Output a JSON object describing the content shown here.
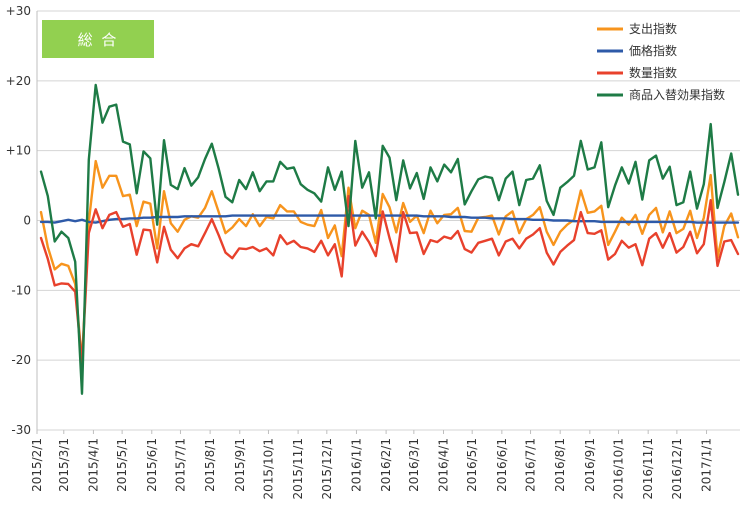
{
  "chart_data": {
    "type": "line",
    "title": "総 合",
    "xlabel": "",
    "ylabel": "",
    "ylim": [
      -30,
      30
    ],
    "y_ticks": [
      30,
      20,
      10,
      0,
      -10,
      -20,
      -30
    ],
    "y_tick_labels": [
      "+30",
      "+20",
      "+10",
      "0",
      "-10",
      "-20",
      "-30"
    ],
    "x_tick_labels": [
      "2015/2/1",
      "2015/3/1",
      "2015/4/1",
      "2015/5/1",
      "2015/6/1",
      "2015/7/1",
      "2015/8/1",
      "2015/9/1",
      "2015/10/1",
      "2015/11/1",
      "2015/12/1",
      "2016/1/1",
      "2016/2/1",
      "2016/3/1",
      "2016/4/1",
      "2016/5/1",
      "2016/6/1",
      "2016/7/1",
      "2016/8/1",
      "2016/9/1",
      "2016/10/1",
      "2016/11/1",
      "2016/12/1",
      "2017/1/1"
    ],
    "x_start": "2015/2/1",
    "x_end": "2017/2/5",
    "frequency": "weekly",
    "grid": "horizontal",
    "legend_position": "top-right",
    "badge_color": "#92d050",
    "series": [
      {
        "name": "支出指数",
        "color": "#f7941d",
        "values": [
          1.2,
          -3.8,
          -7.0,
          -6.2,
          -6.5,
          -9.1,
          -20.3,
          -0.2,
          8.5,
          4.7,
          6.4,
          6.4,
          3.5,
          3.7,
          -0.8,
          2.7,
          2.4,
          -4.0,
          4.2,
          -0.4,
          -1.6,
          0.1,
          0.6,
          0.4,
          1.8,
          4.2,
          1.2,
          -1.8,
          -1.0,
          0.2,
          -0.8,
          0.9,
          -0.8,
          0.5,
          0.3,
          2.2,
          1.3,
          1.3,
          -0.2,
          -0.6,
          -0.8,
          1.5,
          -2.5,
          -0.7,
          -5.1,
          4.7,
          -1.1,
          1.4,
          0.8,
          -3.2,
          3.8,
          1.9,
          -1.7,
          2.5,
          -0.2,
          0.7,
          -1.8,
          1.4,
          -0.4,
          0.8,
          0.9,
          1.8,
          -1.5,
          -1.6,
          0.4,
          0.5,
          0.7,
          -2.0,
          0.6,
          1.3,
          -1.8,
          0.2,
          0.8,
          1.9,
          -1.6,
          -3.5,
          -1.6,
          -0.6,
          0.1,
          4.3,
          1.1,
          1.3,
          2.1,
          -3.5,
          -1.6,
          0.4,
          -0.6,
          0.8,
          -1.9,
          0.8,
          1.8,
          -1.7,
          1.3,
          -1.8,
          -1.2,
          1.4,
          -2.5,
          0.4,
          6.5,
          -5.3,
          -0.8,
          1.0,
          -2.4
        ]
      },
      {
        "name": "価格指数",
        "color": "#2e5aa8",
        "values": [
          -0.2,
          -0.2,
          -0.3,
          -0.1,
          0.1,
          -0.1,
          0.1,
          -0.2,
          -0.3,
          -0.1,
          0.1,
          0.2,
          0.2,
          0.3,
          0.3,
          0.4,
          0.4,
          0.5,
          0.5,
          0.5,
          0.5,
          0.6,
          0.6,
          0.6,
          0.6,
          0.6,
          0.6,
          0.6,
          0.7,
          0.7,
          0.7,
          0.7,
          0.7,
          0.7,
          0.7,
          0.7,
          0.7,
          0.7,
          0.7,
          0.7,
          0.7,
          0.7,
          0.7,
          0.7,
          0.7,
          0.7,
          0.7,
          0.7,
          0.7,
          0.7,
          0.7,
          0.7,
          0.7,
          0.7,
          0.7,
          0.7,
          0.6,
          0.6,
          0.6,
          0.6,
          0.5,
          0.5,
          0.5,
          0.4,
          0.4,
          0.4,
          0.3,
          0.3,
          0.3,
          0.2,
          0.2,
          0.2,
          0.1,
          0.1,
          0.1,
          0.0,
          0.0,
          0.0,
          -0.1,
          -0.1,
          -0.1,
          -0.1,
          -0.2,
          -0.2,
          -0.2,
          -0.2,
          -0.2,
          -0.2,
          -0.2,
          -0.2,
          -0.2,
          -0.2,
          -0.2,
          -0.2,
          -0.2,
          -0.2,
          -0.3,
          -0.3,
          -0.3,
          -0.3,
          -0.3,
          -0.3,
          -0.3
        ]
      },
      {
        "name": "数量指数",
        "color": "#e8412c",
        "values": [
          -2.5,
          -5.5,
          -9.3,
          -9.0,
          -9.1,
          -10.2,
          -20.4,
          -1.8,
          1.6,
          -1.1,
          0.8,
          1.2,
          -0.9,
          -0.5,
          -4.9,
          -1.3,
          -1.4,
          -6.0,
          -0.9,
          -4.2,
          -5.4,
          -4.0,
          -3.4,
          -3.7,
          -1.8,
          0.2,
          -2.1,
          -4.6,
          -5.4,
          -4.0,
          -4.1,
          -3.8,
          -4.4,
          -4.0,
          -5.0,
          -2.1,
          -3.4,
          -2.9,
          -3.8,
          -4.0,
          -4.5,
          -2.9,
          -5.0,
          -3.4,
          -8.0,
          3.5,
          -3.6,
          -1.6,
          -3.1,
          -5.1,
          1.3,
          -2.5,
          -5.9,
          1.2,
          -1.8,
          -1.7,
          -4.8,
          -2.8,
          -3.1,
          -2.3,
          -2.6,
          -1.5,
          -4.1,
          -4.6,
          -3.2,
          -2.9,
          -2.6,
          -5.0,
          -3.0,
          -2.6,
          -4.0,
          -2.6,
          -2.0,
          -1.1,
          -4.6,
          -6.3,
          -4.5,
          -3.6,
          -2.8,
          1.2,
          -1.8,
          -1.9,
          -1.4,
          -5.6,
          -4.8,
          -2.9,
          -3.9,
          -3.4,
          -6.4,
          -2.6,
          -1.8,
          -3.9,
          -1.8,
          -4.6,
          -3.8,
          -1.6,
          -4.7,
          -3.4,
          2.9,
          -6.5,
          -3.0,
          -2.8,
          -4.8
        ]
      },
      {
        "name": "商品入替効果指数",
        "color": "#1e7b46",
        "values": [
          7.0,
          3.5,
          -3.0,
          -1.6,
          -2.5,
          -5.9,
          -24.8,
          8.7,
          19.4,
          14.0,
          16.3,
          16.6,
          11.3,
          10.9,
          3.9,
          9.9,
          8.9,
          -0.6,
          11.5,
          5.1,
          4.5,
          7.5,
          5.0,
          6.2,
          8.8,
          11.0,
          7.4,
          3.4,
          2.6,
          5.8,
          4.5,
          6.9,
          4.2,
          5.6,
          5.6,
          8.4,
          7.4,
          7.6,
          5.2,
          4.4,
          3.9,
          2.7,
          7.6,
          4.4,
          7.0,
          -0.8,
          11.4,
          4.7,
          6.9,
          0.3,
          10.7,
          9.0,
          2.9,
          8.6,
          4.6,
          6.8,
          3.1,
          7.6,
          5.6,
          8.0,
          6.9,
          8.8,
          2.3,
          4.2,
          5.9,
          6.3,
          6.1,
          2.9,
          6.0,
          7.0,
          2.2,
          5.8,
          6.0,
          7.9,
          2.8,
          0.8,
          4.7,
          5.5,
          6.4,
          11.4,
          7.3,
          7.6,
          11.2,
          1.9,
          5.0,
          7.6,
          5.3,
          8.4,
          3.0,
          8.6,
          9.3,
          6.0,
          7.7,
          2.2,
          2.6,
          7.0,
          1.7,
          5.2,
          13.8,
          1.8,
          5.5,
          9.6,
          3.7
        ]
      }
    ]
  }
}
